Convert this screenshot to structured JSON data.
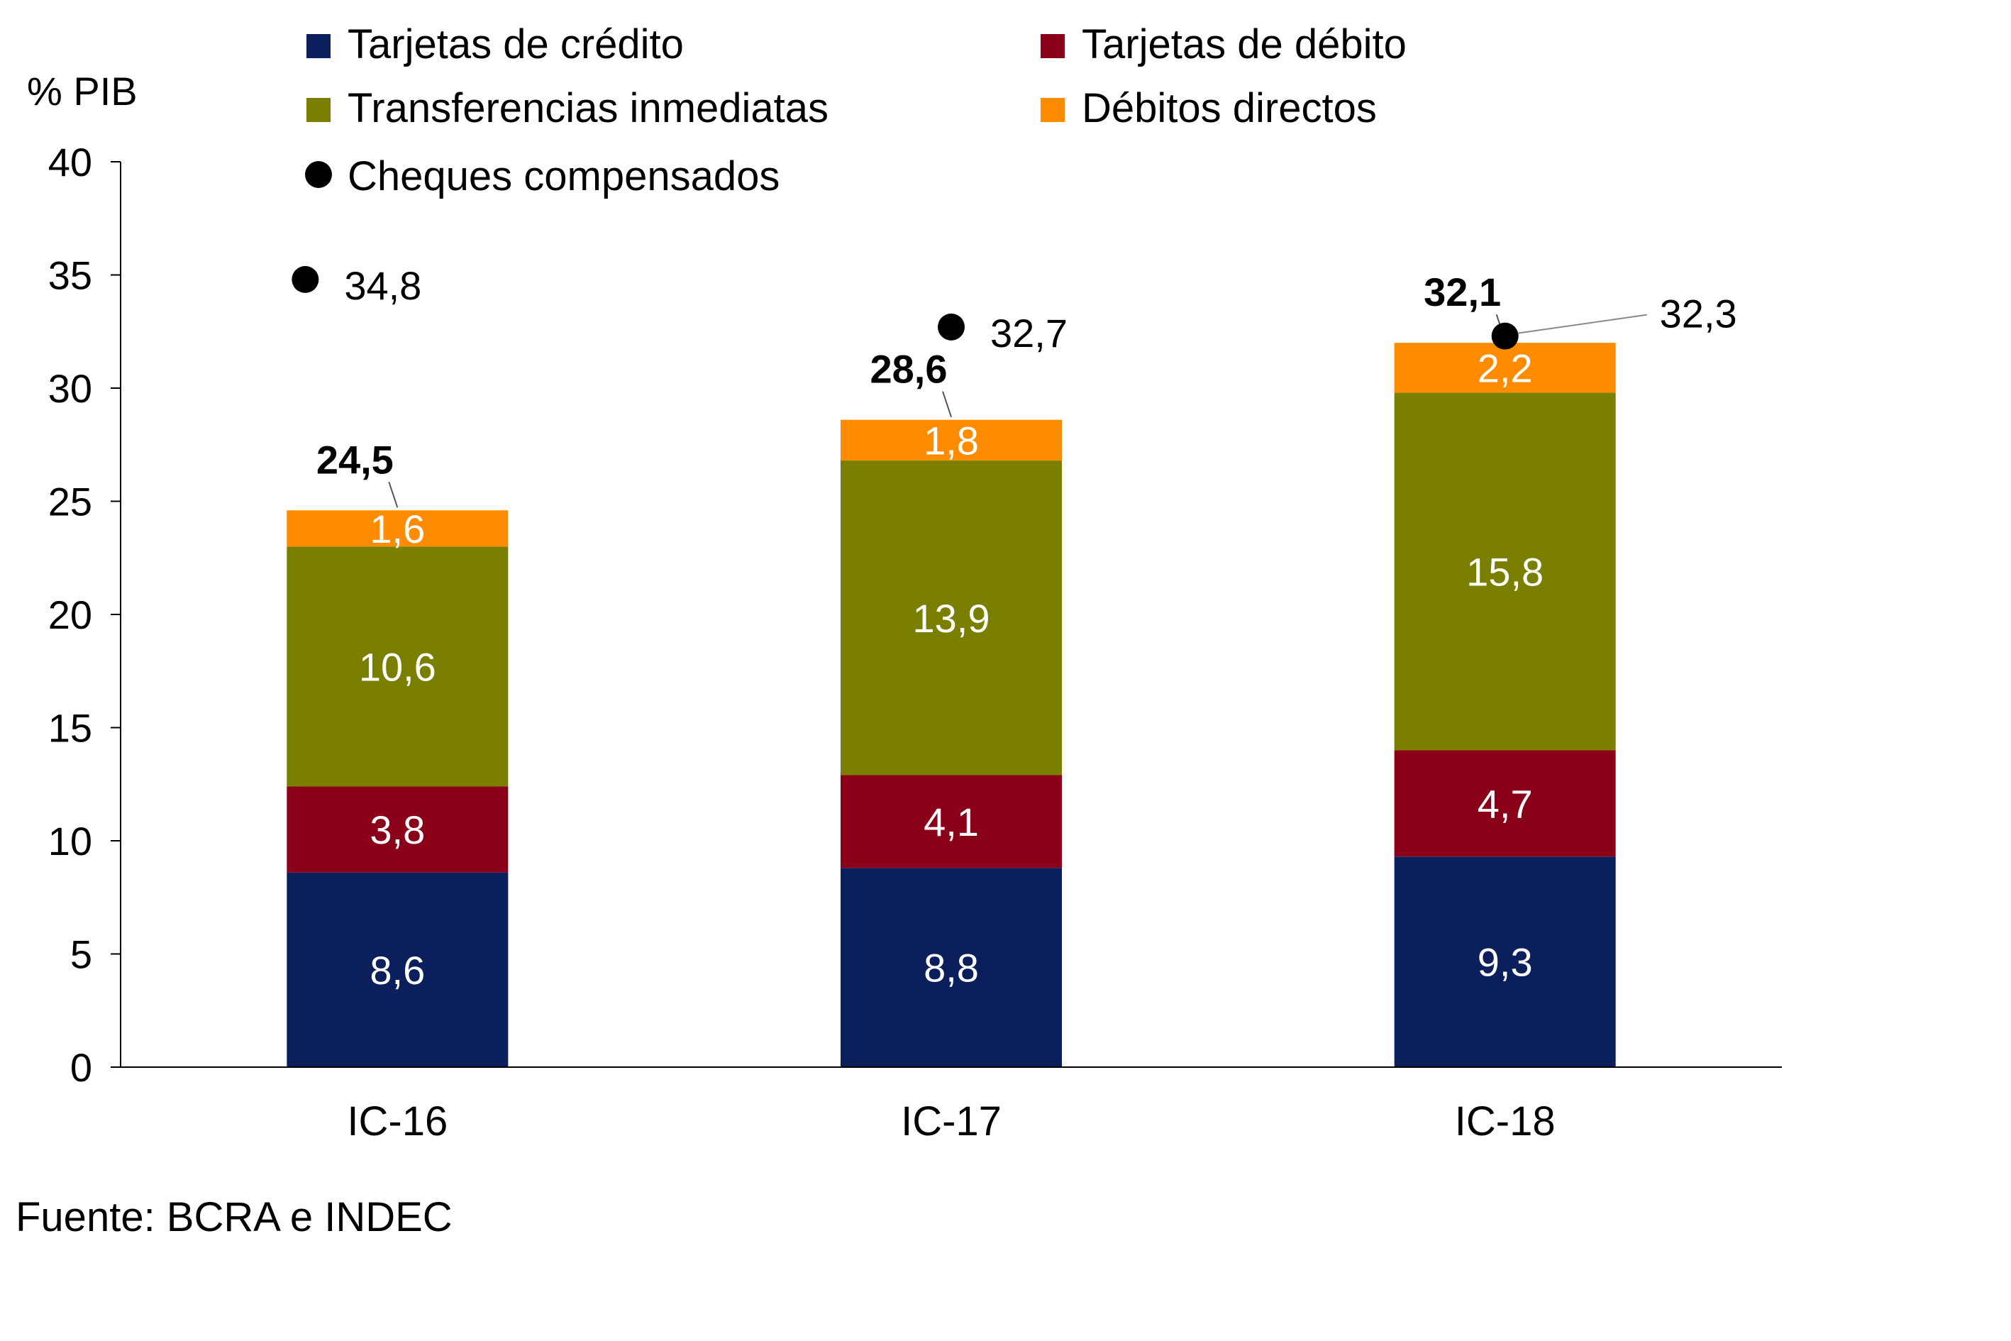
{
  "chart_data": {
    "type": "bar",
    "stacked": true,
    "ylabel": "% PIB",
    "ylim": [
      0,
      40
    ],
    "yticks": [
      0,
      5,
      10,
      15,
      20,
      25,
      30,
      35,
      40
    ],
    "categories": [
      "IC-16",
      "IC-17",
      "IC-18"
    ],
    "series": [
      {
        "name": "Tarjetas de crédito",
        "color": "#0b1f5c",
        "values": [
          8.6,
          8.8,
          9.3
        ],
        "labels": [
          "8,6",
          "8,8",
          "9,3"
        ]
      },
      {
        "name": "Tarjetas de débito",
        "color": "#8b0019",
        "values": [
          3.8,
          4.1,
          4.7
        ],
        "labels": [
          "3,8",
          "4,1",
          "4,7"
        ]
      },
      {
        "name": "Transferencias inmediatas",
        "color": "#7a7f00",
        "values": [
          10.6,
          13.9,
          15.8
        ],
        "labels": [
          "10,6",
          "13,9",
          "15,8"
        ]
      },
      {
        "name": "Débitos directos",
        "color": "#ff8c00",
        "values": [
          1.6,
          1.8,
          2.2
        ],
        "labels": [
          "1,6",
          "1,8",
          "2,2"
        ]
      }
    ],
    "totals": {
      "values": [
        24.5,
        28.6,
        32.1
      ],
      "labels": [
        "24,5",
        "28,6",
        "32,1"
      ]
    },
    "markers": {
      "name": "Cheques compensados",
      "color": "#000000",
      "values": [
        34.8,
        32.7,
        32.3
      ],
      "labels": [
        "34,8",
        "32,7",
        "32,3"
      ]
    },
    "legend": "top",
    "grid": false
  },
  "footer": {
    "source": "Fuente: BCRA e INDEC"
  }
}
